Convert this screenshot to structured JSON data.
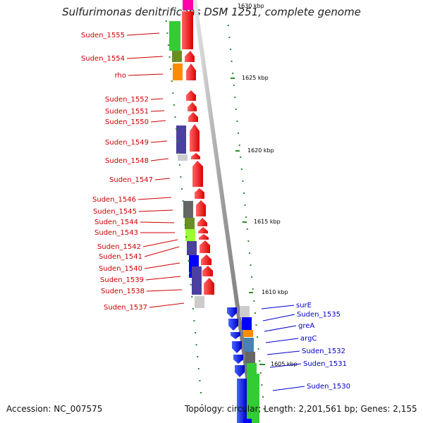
{
  "title": "Sulfurimonas denitrificans DSM 1251, complete genome",
  "accession": "Accession: NC_007575",
  "topology": "Topology: circular; Length: 2,201,561 bp; Genes: 2,155",
  "kbp_labels": {
    "k1630": "1630 kbp",
    "k1625": "1625 kbp",
    "k1620": "1620 kbp",
    "k1615": "1615 kbp",
    "k1610": "1610 kbp",
    "k1605": "1605 kbp"
  },
  "genes_left": {
    "g1555": "Suden_1555",
    "g1554": "Suden_1554",
    "rho": "rho",
    "g1552": "Suden_1552",
    "g1551": "Suden_1551",
    "g1550": "Suden_1550",
    "g1549": "Suden_1549",
    "g1548": "Suden_1548",
    "g1547": "Suden_1547",
    "g1546": "Suden_1546",
    "g1545": "Suden_1545",
    "g1544": "Suden_1544",
    "g1543": "Suden_1543",
    "g1542": "Suden_1542",
    "g1541": "Suden_1541",
    "g1540": "Suden_1540",
    "g1539": "Suden_1539",
    "g1538": "Suden_1538",
    "g1537": "Suden_1537"
  },
  "genes_right": {
    "surE": "surE",
    "g1535": "Suden_1535",
    "greA": "greA",
    "argC": "argC",
    "g1532": "Suden_1532",
    "g1531": "Suden_1531",
    "g1530": "Suden_1530"
  },
  "colors": {
    "forward_strand": "#ff0000",
    "reverse_strand": "#0000ff",
    "backbone": "#999999",
    "gc_ticks": "#2a8a2a"
  }
}
